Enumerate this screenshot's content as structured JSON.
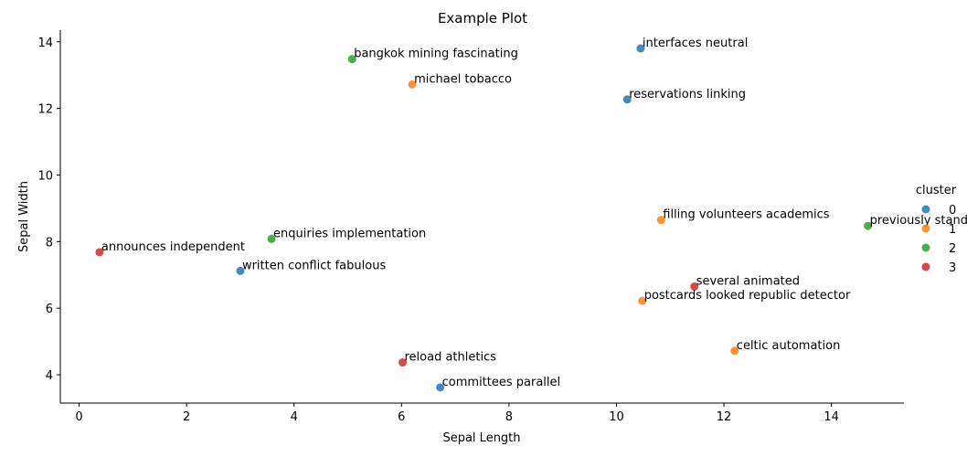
{
  "chart_data": {
    "type": "scatter",
    "title": "Example Plot",
    "xlabel": "Sepal Length",
    "ylabel": "Sepal Width",
    "xlim": [
      -0.35,
      15.35
    ],
    "ylim": [
      3.15,
      14.35
    ],
    "xticks": [
      0,
      2,
      4,
      6,
      8,
      10,
      12,
      14
    ],
    "yticks": [
      4,
      6,
      8,
      10,
      12,
      14
    ],
    "grid": false,
    "legend": {
      "title": "cluster",
      "placement": "right",
      "entries": [
        {
          "label": "0",
          "color": "#1f77b4"
        },
        {
          "label": "1",
          "color": "#ff7f0e"
        },
        {
          "label": "2",
          "color": "#2ca02c"
        },
        {
          "label": "3",
          "color": "#d62728"
        }
      ]
    },
    "points": [
      {
        "x": 10.45,
        "y": 13.8,
        "cluster": 0,
        "label": "interfaces neutral"
      },
      {
        "x": 10.2,
        "y": 12.27,
        "cluster": 0,
        "label": "reservations linking"
      },
      {
        "x": 3.0,
        "y": 7.12,
        "cluster": 0,
        "label": "written conflict fabulous"
      },
      {
        "x": 6.72,
        "y": 3.62,
        "cluster": 0,
        "label": "committees parallel"
      },
      {
        "x": 6.2,
        "y": 12.72,
        "cluster": 1,
        "label": "michael tobacco"
      },
      {
        "x": 10.83,
        "y": 8.65,
        "cluster": 1,
        "label": "filling volunteers academics"
      },
      {
        "x": 10.48,
        "y": 6.22,
        "cluster": 1,
        "label": "postcards looked republic detector"
      },
      {
        "x": 12.2,
        "y": 4.72,
        "cluster": 1,
        "label": "celtic automation"
      },
      {
        "x": 5.08,
        "y": 13.48,
        "cluster": 2,
        "label": "bangkok mining fascinating"
      },
      {
        "x": 3.58,
        "y": 8.08,
        "cluster": 2,
        "label": "enquiries implementation"
      },
      {
        "x": 14.68,
        "y": 8.47,
        "cluster": 2,
        "label": "previously stand"
      },
      {
        "x": 0.38,
        "y": 7.68,
        "cluster": 3,
        "label": "announces independent"
      },
      {
        "x": 11.45,
        "y": 6.65,
        "cluster": 3,
        "label": "several animated"
      },
      {
        "x": 6.02,
        "y": 4.37,
        "cluster": 3,
        "label": "reload athletics"
      }
    ]
  }
}
